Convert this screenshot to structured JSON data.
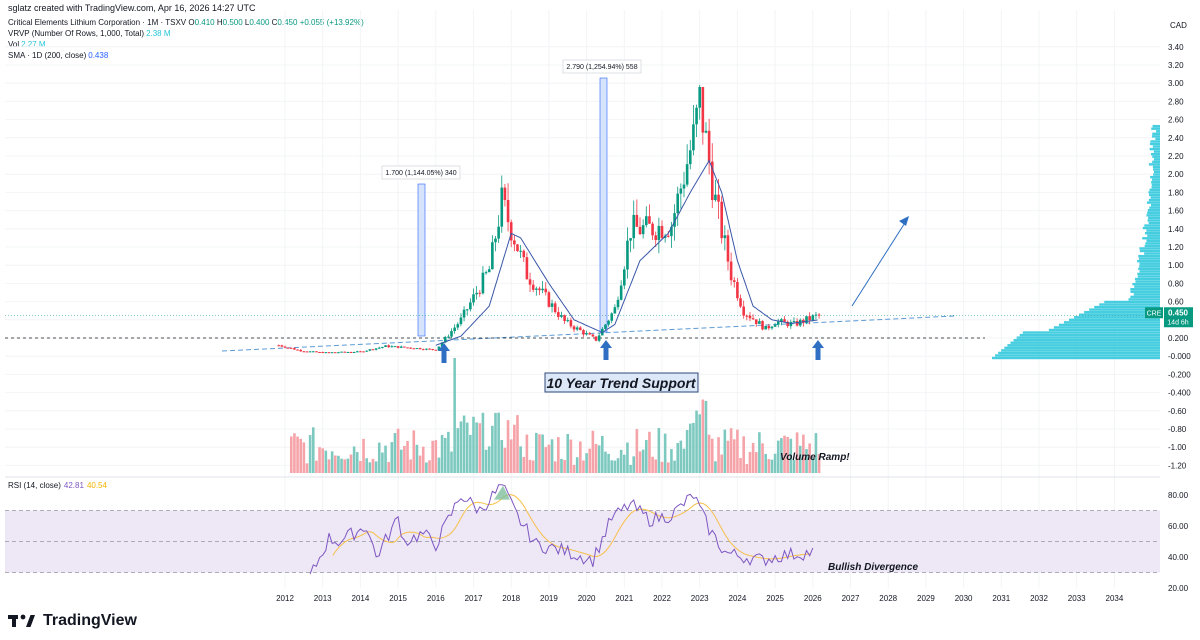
{
  "header": {
    "created_by": "sglatz created with TradingView.com, Apr 16, 2026 14:27 UTC"
  },
  "legend": {
    "symbol": "Critical Elements Lithium Corporation · 1M · TSXV",
    "ohlc": {
      "open_label": "O",
      "open": "0.410",
      "high_label": "H",
      "high": "0.500",
      "low_label": "L",
      "low": "0.400",
      "close_label": "C",
      "close": "0.450",
      "change": "+0.055 (+13.92%)"
    },
    "vrvp_label": "VRVP (Number Of Rows, 1,000, Total)",
    "vrvp_value": "2.38 M",
    "vol_label": "Vol",
    "vol_value": "2.27 M",
    "sma_label": "SMA · 1D (200, close)",
    "sma_value": "0.438",
    "rsi_label": "RSI (14, close)",
    "rsi_value": "42.81",
    "rsi_ma_value": "40.54"
  },
  "colors": {
    "up": "#089981",
    "down": "#f23645",
    "vol_up": "#7dc9c0",
    "vol_down": "#f5a3a8",
    "sma": "#3a57a8",
    "vrvp": "#26c6da",
    "rsi": "#7e57c2",
    "rsi_ma": "#f7c04a",
    "rsi_band": "#ede7f6",
    "annotation": "#2f6fc3",
    "measure_fill": "#d6e4fb"
  },
  "price_axis": {
    "currency": "CAD",
    "ticks": [
      "3.40",
      "3.20",
      "3.00",
      "2.80",
      "2.60",
      "2.40",
      "2.20",
      "2.00",
      "1.80",
      "1.60",
      "1.40",
      "1.20",
      "1.00",
      "0.80",
      "0.60",
      "0.40",
      "0.200",
      "-0.000",
      "-0.200",
      "-0.400",
      "-0.60",
      "-0.80",
      "-1.00",
      "-1.20"
    ],
    "last_symbol": "CRE",
    "last_price": "0.450",
    "countdown": "14d 6h"
  },
  "rsi_axis": {
    "ticks": [
      "80.00",
      "60.00",
      "40.00",
      "20.00"
    ]
  },
  "time_axis": {
    "labels": [
      "2012",
      "2013",
      "2014",
      "2015",
      "2016",
      "2017",
      "2018",
      "2019",
      "2020",
      "2021",
      "2022",
      "2023",
      "2024",
      "2025",
      "2026",
      "2027",
      "2028",
      "2029",
      "2030",
      "2031",
      "2032",
      "2033",
      "2034"
    ]
  },
  "annotations": {
    "measure_1": "1.700 (1,144.05%) 340",
    "measure_2": "2.790 (1,254.94%) 558",
    "trend_support": "10 Year Trend Support",
    "volume_ramp": "Volume Ramp!",
    "bullish_divergence": "Bullish Divergence"
  },
  "brand": {
    "name": "TradingView"
  },
  "chart_data": {
    "type": "candlestick",
    "interval": "1M",
    "y_scale": "linear",
    "price_range": [
      -1.25,
      3.45
    ],
    "rsi_range": [
      20,
      85
    ],
    "rsi_levels": [
      70,
      50,
      30
    ],
    "series": [
      {
        "name": "Price",
        "style": "monthly candles",
        "keypoints": [
          {
            "date": "2011-11",
            "close": 0.12
          },
          {
            "date": "2012-06",
            "close": 0.06
          },
          {
            "date": "2013-01",
            "close": 0.04
          },
          {
            "date": "2014-01",
            "close": 0.05
          },
          {
            "date": "2014-09",
            "close": 0.11
          },
          {
            "date": "2015-06",
            "close": 0.09
          },
          {
            "date": "2016-01",
            "close": 0.07
          },
          {
            "date": "2016-09",
            "close": 0.4
          },
          {
            "date": "2017-06",
            "close": 0.95
          },
          {
            "date": "2017-10",
            "close": 1.7
          },
          {
            "date": "2018-06",
            "close": 0.9
          },
          {
            "date": "2019-06",
            "close": 0.38
          },
          {
            "date": "2020-04",
            "close": 0.18
          },
          {
            "date": "2020-10",
            "close": 0.52
          },
          {
            "date": "2021-03",
            "close": 1.4
          },
          {
            "date": "2021-09",
            "close": 1.4
          },
          {
            "date": "2022-04",
            "close": 1.45
          },
          {
            "date": "2022-11",
            "close": 2.4
          },
          {
            "date": "2023-01",
            "close": 2.8
          },
          {
            "date": "2023-06",
            "close": 1.7
          },
          {
            "date": "2023-11",
            "close": 0.9
          },
          {
            "date": "2024-03",
            "close": 0.5
          },
          {
            "date": "2024-10",
            "close": 0.3
          },
          {
            "date": "2025-01",
            "close": 0.38
          },
          {
            "date": "2025-07",
            "close": 0.35
          },
          {
            "date": "2026-03",
            "close": 0.45
          }
        ]
      },
      {
        "name": "SMA",
        "keypoints": [
          {
            "date": "2016-01",
            "value": 0.12
          },
          {
            "date": "2016-09",
            "value": 0.22
          },
          {
            "date": "2017-06",
            "value": 0.55
          },
          {
            "date": "2018-01",
            "value": 1.35
          },
          {
            "date": "2018-04",
            "value": 1.3
          },
          {
            "date": "2019-01",
            "value": 0.8
          },
          {
            "date": "2019-09",
            "value": 0.4
          },
          {
            "date": "2020-06",
            "value": 0.26
          },
          {
            "date": "2020-10",
            "value": 0.35
          },
          {
            "date": "2021-06",
            "value": 1.05
          },
          {
            "date": "2022-03",
            "value": 1.35
          },
          {
            "date": "2022-10",
            "value": 1.8
          },
          {
            "date": "2023-04",
            "value": 2.15
          },
          {
            "date": "2023-08",
            "value": 1.8
          },
          {
            "date": "2024-01",
            "value": 1.05
          },
          {
            "date": "2024-06",
            "value": 0.55
          },
          {
            "date": "2024-12",
            "value": 0.4
          },
          {
            "date": "2025-06",
            "value": 0.36
          },
          {
            "date": "2026-03",
            "value": 0.4
          }
        ]
      },
      {
        "name": "RSI",
        "keypoints": [
          {
            "date": "2012-09",
            "value": 27
          },
          {
            "date": "2013-03",
            "value": 52
          },
          {
            "date": "2013-06",
            "value": 50
          },
          {
            "date": "2014-03",
            "value": 60
          },
          {
            "date": "2014-06",
            "value": 40
          },
          {
            "date": "2015-01",
            "value": 65
          },
          {
            "date": "2015-03",
            "value": 50
          },
          {
            "date": "2015-09",
            "value": 55
          },
          {
            "date": "2016-01",
            "value": 48
          },
          {
            "date": "2016-09",
            "value": 80
          },
          {
            "date": "2017-03",
            "value": 70
          },
          {
            "date": "2017-10",
            "value": 86
          },
          {
            "date": "2018-03",
            "value": 66
          },
          {
            "date": "2018-09",
            "value": 48
          },
          {
            "date": "2019-06",
            "value": 44
          },
          {
            "date": "2020-03",
            "value": 38
          },
          {
            "date": "2020-09",
            "value": 65
          },
          {
            "date": "2021-03",
            "value": 74
          },
          {
            "date": "2021-09",
            "value": 64
          },
          {
            "date": "2022-04",
            "value": 67
          },
          {
            "date": "2022-11",
            "value": 80
          },
          {
            "date": "2023-04",
            "value": 58
          },
          {
            "date": "2023-09",
            "value": 43
          },
          {
            "date": "2024-03",
            "value": 40
          },
          {
            "date": "2024-09",
            "value": 38
          },
          {
            "date": "2025-03",
            "value": 41
          },
          {
            "date": "2026-01",
            "value": 43
          }
        ]
      }
    ],
    "volume_peak": {
      "date": "2016-07"
    }
  }
}
